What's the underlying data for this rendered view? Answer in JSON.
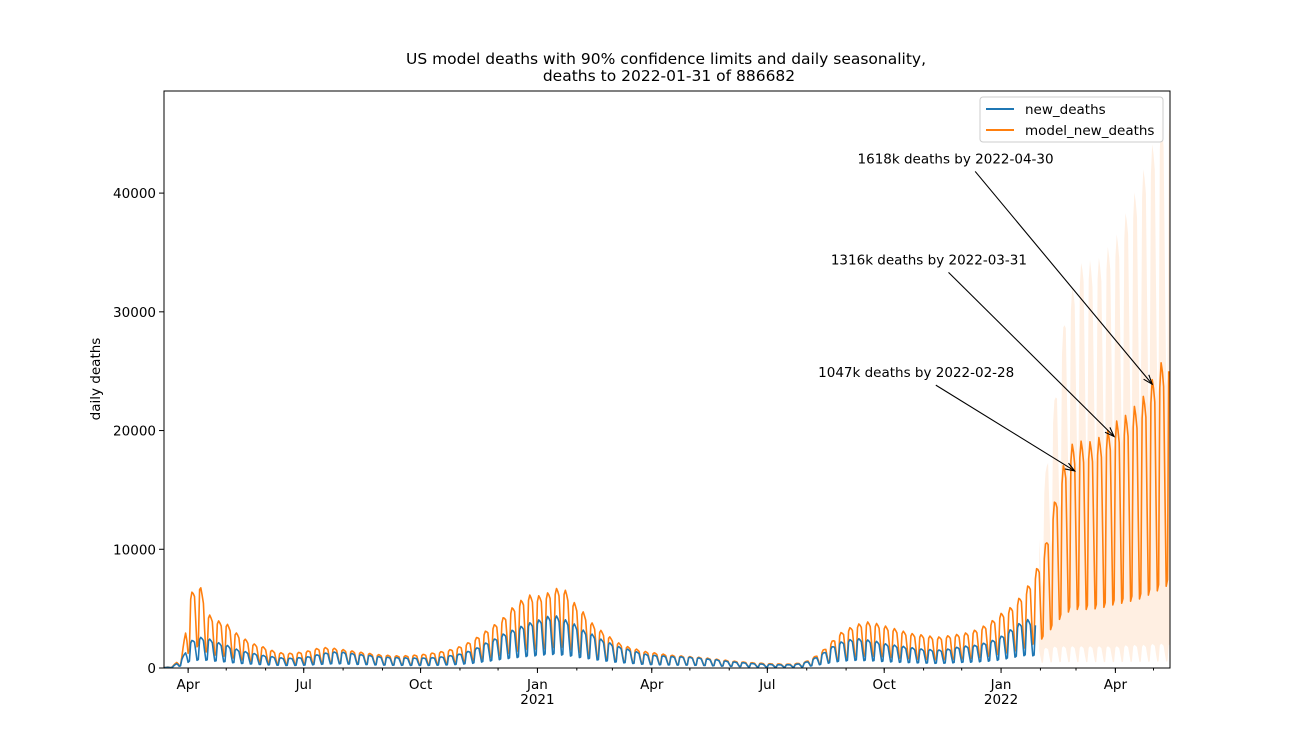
{
  "chart_data": {
    "type": "line",
    "title": "US model deaths with 90% confidence limits and daily seasonality,",
    "subtitle": "deaths to 2022-01-31 of 886682",
    "xlabel": "",
    "ylabel": "daily deaths",
    "xlim": [
      "2020-03-13",
      "2022-05-14"
    ],
    "ylim": [
      0,
      48600
    ],
    "grid": false,
    "legend_position": "top-right",
    "y_ticks": [
      {
        "value": 0,
        "label": "0"
      },
      {
        "value": 10000,
        "label": "10000"
      },
      {
        "value": 20000,
        "label": "20000"
      },
      {
        "value": 30000,
        "label": "30000"
      },
      {
        "value": 40000,
        "label": "40000"
      }
    ],
    "x_ticks": [
      {
        "date": "2020-04-01",
        "label": "Apr",
        "sublabel": ""
      },
      {
        "date": "2020-07-01",
        "label": "Jul",
        "sublabel": ""
      },
      {
        "date": "2020-10-01",
        "label": "Oct",
        "sublabel": ""
      },
      {
        "date": "2021-01-01",
        "label": "Jan",
        "sublabel": "2021"
      },
      {
        "date": "2021-04-01",
        "label": "Apr",
        "sublabel": ""
      },
      {
        "date": "2021-07-01",
        "label": "Jul",
        "sublabel": ""
      },
      {
        "date": "2021-10-01",
        "label": "Oct",
        "sublabel": ""
      },
      {
        "date": "2022-01-01",
        "label": "Jan",
        "sublabel": "2022"
      },
      {
        "date": "2022-04-01",
        "label": "Apr",
        "sublabel": ""
      }
    ],
    "series": [
      {
        "name": "new_deaths",
        "color": "#1f77b4",
        "x": [
          "2020-03-13",
          "2020-03-20",
          "2020-03-27",
          "2020-04-03",
          "2020-04-10",
          "2020-04-17",
          "2020-04-24",
          "2020-05-01",
          "2020-05-08",
          "2020-05-15",
          "2020-05-22",
          "2020-05-29",
          "2020-06-05",
          "2020-06-12",
          "2020-06-19",
          "2020-06-26",
          "2020-07-03",
          "2020-07-10",
          "2020-07-17",
          "2020-07-24",
          "2020-07-31",
          "2020-08-07",
          "2020-08-14",
          "2020-08-21",
          "2020-08-28",
          "2020-09-04",
          "2020-09-11",
          "2020-09-18",
          "2020-09-25",
          "2020-10-02",
          "2020-10-09",
          "2020-10-16",
          "2020-10-23",
          "2020-10-30",
          "2020-11-06",
          "2020-11-13",
          "2020-11-20",
          "2020-11-27",
          "2020-12-04",
          "2020-12-11",
          "2020-12-18",
          "2020-12-25",
          "2021-01-01",
          "2021-01-08",
          "2021-01-15",
          "2021-01-22",
          "2021-01-29",
          "2021-02-05",
          "2021-02-12",
          "2021-02-19",
          "2021-02-26",
          "2021-03-05",
          "2021-03-12",
          "2021-03-19",
          "2021-03-26",
          "2021-04-02",
          "2021-04-09",
          "2021-04-16",
          "2021-04-23",
          "2021-04-30",
          "2021-05-07",
          "2021-05-14",
          "2021-05-21",
          "2021-05-28",
          "2021-06-04",
          "2021-06-11",
          "2021-06-18",
          "2021-06-25",
          "2021-07-02",
          "2021-07-09",
          "2021-07-16",
          "2021-07-23",
          "2021-07-30",
          "2021-08-06",
          "2021-08-13",
          "2021-08-20",
          "2021-08-27",
          "2021-09-03",
          "2021-09-10",
          "2021-09-17",
          "2021-09-24",
          "2021-10-01",
          "2021-10-08",
          "2021-10-15",
          "2021-10-22",
          "2021-10-29",
          "2021-11-05",
          "2021-11-12",
          "2021-11-19",
          "2021-11-26",
          "2021-12-03",
          "2021-12-10",
          "2021-12-17",
          "2021-12-24",
          "2021-12-31",
          "2022-01-07",
          "2022-01-14",
          "2022-01-21",
          "2022-01-28"
        ],
        "y": [
          20,
          120,
          700,
          2100,
          2400,
          2300,
          2000,
          1800,
          1500,
          1300,
          1150,
          1000,
          900,
          800,
          760,
          800,
          850,
          1000,
          1150,
          1250,
          1250,
          1150,
          1050,
          1000,
          900,
          850,
          820,
          800,
          780,
          780,
          800,
          850,
          950,
          1050,
          1250,
          1500,
          1900,
          2200,
          2600,
          2900,
          3200,
          3500,
          3700,
          4000,
          4100,
          3800,
          3500,
          3000,
          2700,
          2300,
          2000,
          1700,
          1500,
          1300,
          1100,
          1000,
          950,
          900,
          880,
          850,
          800,
          720,
          650,
          560,
          480,
          420,
          360,
          320,
          280,
          260,
          250,
          280,
          400,
          700,
          1100,
          1600,
          2000,
          2200,
          2300,
          2200,
          2100,
          1900,
          1800,
          1700,
          1600,
          1500,
          1450,
          1400,
          1450,
          1600,
          1700,
          1750,
          1900,
          2100,
          2400,
          2900,
          3400,
          3800,
          3600
        ]
      },
      {
        "name": "model_new_deaths",
        "color": "#ff7f0e",
        "x": [
          "2020-03-13",
          "2020-03-20",
          "2020-03-27",
          "2020-04-03",
          "2020-04-10",
          "2020-04-17",
          "2020-04-24",
          "2020-05-01",
          "2020-05-08",
          "2020-05-15",
          "2020-05-22",
          "2020-05-29",
          "2020-06-05",
          "2020-06-12",
          "2020-06-19",
          "2020-06-26",
          "2020-07-03",
          "2020-07-10",
          "2020-07-17",
          "2020-07-24",
          "2020-07-31",
          "2020-08-07",
          "2020-08-14",
          "2020-08-21",
          "2020-08-28",
          "2020-09-04",
          "2020-09-11",
          "2020-09-18",
          "2020-09-25",
          "2020-10-02",
          "2020-10-09",
          "2020-10-16",
          "2020-10-23",
          "2020-10-30",
          "2020-11-06",
          "2020-11-13",
          "2020-11-20",
          "2020-11-27",
          "2020-12-04",
          "2020-12-11",
          "2020-12-18",
          "2020-12-25",
          "2021-01-01",
          "2021-01-08",
          "2021-01-15",
          "2021-01-22",
          "2021-01-29",
          "2021-02-05",
          "2021-02-12",
          "2021-02-19",
          "2021-02-26",
          "2021-03-05",
          "2021-03-12",
          "2021-03-19",
          "2021-03-26",
          "2021-04-02",
          "2021-04-09",
          "2021-04-16",
          "2021-04-23",
          "2021-04-30",
          "2021-05-07",
          "2021-05-14",
          "2021-05-21",
          "2021-05-28",
          "2021-06-04",
          "2021-06-11",
          "2021-06-18",
          "2021-06-25",
          "2021-07-02",
          "2021-07-09",
          "2021-07-16",
          "2021-07-23",
          "2021-07-30",
          "2021-08-06",
          "2021-08-13",
          "2021-08-20",
          "2021-08-27",
          "2021-09-03",
          "2021-09-10",
          "2021-09-17",
          "2021-09-24",
          "2021-10-01",
          "2021-10-08",
          "2021-10-15",
          "2021-10-22",
          "2021-10-29",
          "2021-11-05",
          "2021-11-12",
          "2021-11-19",
          "2021-11-26",
          "2021-12-03",
          "2021-12-10",
          "2021-12-17",
          "2021-12-24",
          "2021-12-31",
          "2022-01-07",
          "2022-01-14",
          "2022-01-21",
          "2022-01-28",
          "2022-02-04",
          "2022-02-11",
          "2022-02-18",
          "2022-02-25",
          "2022-03-04",
          "2022-03-11",
          "2022-03-18",
          "2022-03-25",
          "2022-04-01",
          "2022-04-08",
          "2022-04-15",
          "2022-04-22",
          "2022-04-29",
          "2022-05-06",
          "2022-05-13"
        ],
        "y": [
          20,
          150,
          900,
          5800,
          6600,
          4200,
          3700,
          3500,
          2800,
          2300,
          1900,
          1700,
          1400,
          1200,
          1150,
          1200,
          1300,
          1500,
          1600,
          1550,
          1450,
          1350,
          1250,
          1150,
          1050,
          1000,
          950,
          950,
          1000,
          1050,
          1150,
          1250,
          1400,
          1600,
          1900,
          2300,
          2800,
          3300,
          3800,
          4600,
          5200,
          5700,
          5600,
          5800,
          6200,
          6200,
          5200,
          4500,
          3600,
          3000,
          2500,
          2000,
          1700,
          1500,
          1300,
          1200,
          1100,
          1000,
          950,
          900,
          850,
          780,
          700,
          620,
          540,
          480,
          420,
          380,
          340,
          320,
          300,
          340,
          450,
          800,
          1300,
          2000,
          2700,
          3100,
          3400,
          3600,
          3500,
          3300,
          3100,
          2900,
          2700,
          2600,
          2500,
          2400,
          2500,
          2600,
          2700,
          2900,
          3200,
          3600,
          4200,
          4600,
          5300,
          6200,
          7500,
          9200,
          12500,
          15500,
          17400,
          17700,
          17600,
          17900,
          18400,
          19200,
          19600,
          20300,
          21000,
          22300,
          23600,
          25000
        ]
      }
    ],
    "confidence_band": {
      "name": "90% confidence limits",
      "x": [
        "2022-01-31",
        "2022-02-07",
        "2022-02-14",
        "2022-02-21",
        "2022-02-28",
        "2022-03-07",
        "2022-03-14",
        "2022-03-21",
        "2022-03-28",
        "2022-04-04",
        "2022-04-11",
        "2022-04-18",
        "2022-04-25",
        "2022-05-02",
        "2022-05-09",
        "2022-05-14"
      ],
      "lower": [
        1500,
        1600,
        1700,
        1700,
        1700,
        1700,
        1700,
        1700,
        1700,
        1700,
        1800,
        1800,
        1800,
        1900,
        1900,
        1900
      ],
      "upper": [
        11000,
        17500,
        23000,
        29000,
        31000,
        33000,
        32500,
        33000,
        34000,
        35000,
        37000,
        38500,
        40500,
        42500,
        44500,
        45000
      ]
    },
    "annotations": [
      {
        "text": "1047k deaths by 2022-02-28",
        "x": "2022-02-28",
        "y": 16600,
        "text_x": "2021-08-10",
        "text_y": 24500
      },
      {
        "text": "1316k deaths by 2022-03-31",
        "x": "2022-03-31",
        "y": 19500,
        "text_x": "2021-08-20",
        "text_y": 34000
      },
      {
        "text": "1618k deaths by 2022-04-30",
        "x": "2022-04-30",
        "y": 23900,
        "text_x": "2021-09-10",
        "text_y": 42500
      }
    ]
  }
}
